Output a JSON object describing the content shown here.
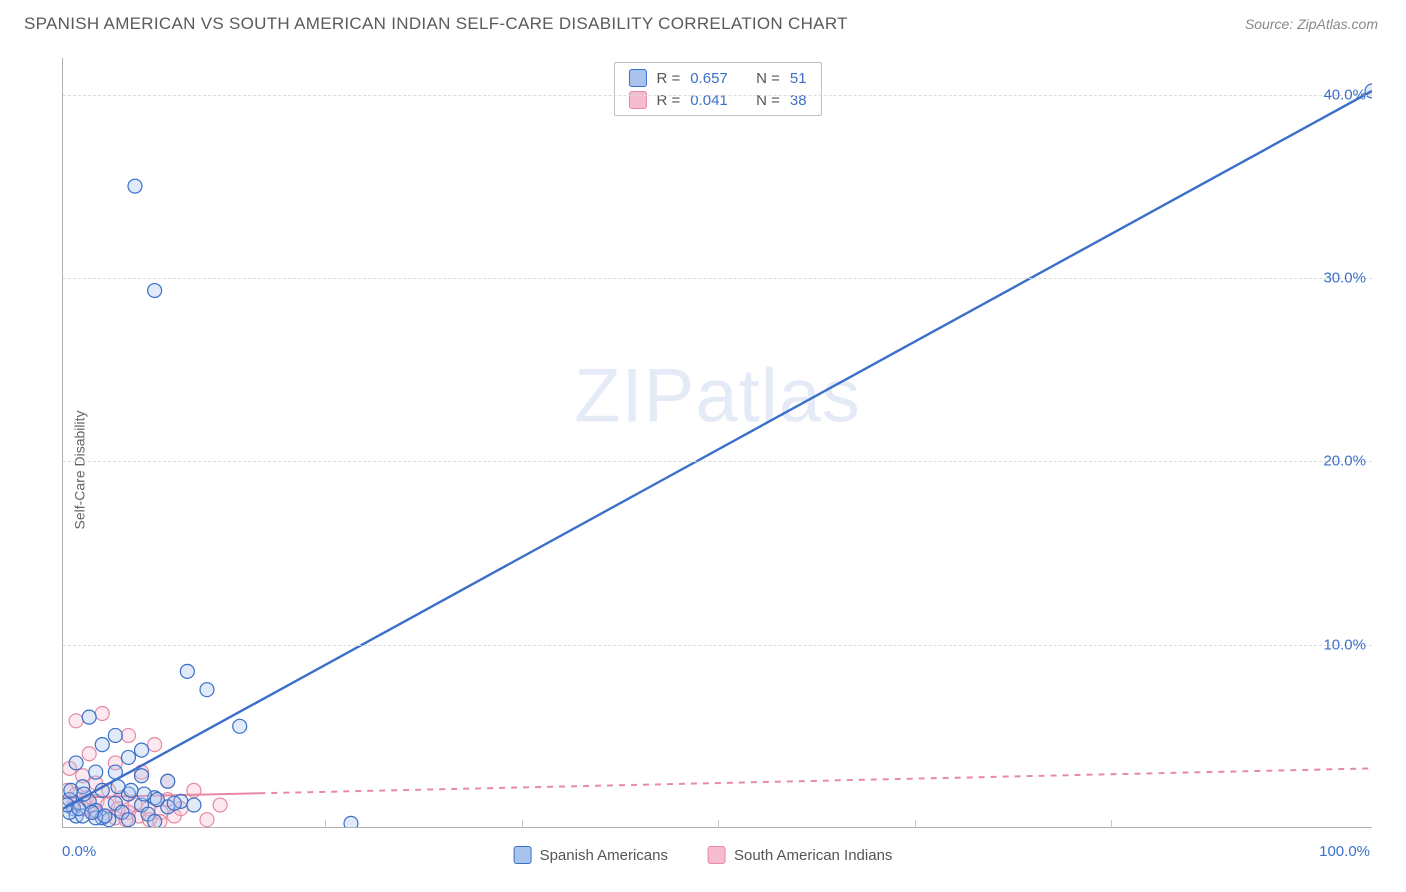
{
  "header": {
    "title": "SPANISH AMERICAN VS SOUTH AMERICAN INDIAN SELF-CARE DISABILITY CORRELATION CHART",
    "source_label": "Source:",
    "source_value": "ZipAtlas.com"
  },
  "chart": {
    "type": "scatter",
    "ylabel": "Self-Care Disability",
    "watermark": "ZIPatlas",
    "xlim": [
      0,
      100
    ],
    "ylim": [
      0,
      42
    ],
    "xtick_label_min": "0.0%",
    "xtick_label_max": "100.0%",
    "yticks": [
      {
        "v": 10,
        "label": "10.0%"
      },
      {
        "v": 20,
        "label": "20.0%"
      },
      {
        "v": 30,
        "label": "30.0%"
      },
      {
        "v": 40,
        "label": "40.0%"
      }
    ],
    "xtick_positions": [
      20,
      35,
      50,
      65,
      80
    ],
    "marker_radius": 7,
    "marker_stroke_width": 1.2,
    "marker_fill_opacity": 0.35,
    "grid_color": "#dcdcdc",
    "axis_font_color": "#3b6fc9",
    "axis_fontsize": 15,
    "background_color": "#ffffff",
    "series": {
      "a": {
        "label": "Spanish Americans",
        "color": "#3b6fc9",
        "fill": "#a9c4ec",
        "R": "0.657",
        "N": "51",
        "trend": {
          "x1": 0,
          "y1": 1.0,
          "x2": 100,
          "y2": 40.2,
          "width": 2.4,
          "dash": "none",
          "solid_until_x": 100
        },
        "points": [
          [
            100,
            40.2
          ],
          [
            5.5,
            35.0
          ],
          [
            7,
            29.3
          ],
          [
            9.5,
            8.5
          ],
          [
            11,
            7.5
          ],
          [
            13.5,
            5.5
          ],
          [
            22,
            0.2
          ],
          [
            2,
            6.0
          ],
          [
            4,
            5.0
          ],
          [
            6,
            4.2
          ],
          [
            3,
            4.5
          ],
          [
            5,
            3.8
          ],
          [
            1,
            3.5
          ],
          [
            2.5,
            3.0
          ],
          [
            4,
            3.0
          ],
          [
            6,
            2.8
          ],
          [
            8,
            2.5
          ],
          [
            1.5,
            2.2
          ],
          [
            3,
            2.0
          ],
          [
            5,
            1.8
          ],
          [
            7,
            1.6
          ],
          [
            9,
            1.4
          ],
          [
            10,
            1.2
          ],
          [
            0.5,
            1.5
          ],
          [
            2,
            1.4
          ],
          [
            4,
            1.3
          ],
          [
            6,
            1.2
          ],
          [
            8,
            1.1
          ],
          [
            0.8,
            1.0
          ],
          [
            2.5,
            0.9
          ],
          [
            4.5,
            0.8
          ],
          [
            6.5,
            0.7
          ],
          [
            1,
            0.6
          ],
          [
            3,
            0.5
          ],
          [
            5,
            0.4
          ],
          [
            7,
            0.3
          ],
          [
            0.5,
            0.8
          ],
          [
            1.5,
            0.6
          ],
          [
            2.5,
            0.5
          ],
          [
            3.5,
            0.4
          ],
          [
            0.3,
            1.2
          ],
          [
            1.2,
            1.0
          ],
          [
            2.2,
            0.8
          ],
          [
            3.2,
            0.6
          ],
          [
            0.6,
            2.0
          ],
          [
            1.6,
            1.8
          ],
          [
            4.2,
            2.2
          ],
          [
            5.2,
            2.0
          ],
          [
            6.2,
            1.8
          ],
          [
            7.2,
            1.5
          ],
          [
            8.5,
            1.3
          ]
        ]
      },
      "b": {
        "label": "South American Indians",
        "color": "#e68aa6",
        "fill": "#f5bccf",
        "R": "0.041",
        "N": "38",
        "trend": {
          "x1": 0,
          "y1": 1.6,
          "x2": 100,
          "y2": 3.2,
          "width": 2.0,
          "dash": "6,6",
          "solid_until_x": 15
        },
        "points": [
          [
            1,
            5.8
          ],
          [
            3,
            6.2
          ],
          [
            5,
            5.0
          ],
          [
            7,
            4.5
          ],
          [
            2,
            4.0
          ],
          [
            4,
            3.5
          ],
          [
            6,
            3.0
          ],
          [
            8,
            2.5
          ],
          [
            10,
            2.0
          ],
          [
            0.5,
            3.2
          ],
          [
            1.5,
            2.8
          ],
          [
            2.5,
            2.4
          ],
          [
            3.5,
            2.0
          ],
          [
            4.5,
            1.6
          ],
          [
            5.5,
            1.2
          ],
          [
            6.5,
            1.0
          ],
          [
            7.5,
            0.8
          ],
          [
            8.5,
            0.6
          ],
          [
            11,
            0.4
          ],
          [
            0.3,
            2.0
          ],
          [
            1.0,
            1.8
          ],
          [
            1.8,
            1.6
          ],
          [
            2.6,
            1.4
          ],
          [
            3.4,
            1.2
          ],
          [
            4.2,
            1.0
          ],
          [
            5.0,
            0.8
          ],
          [
            5.8,
            0.6
          ],
          [
            6.6,
            0.4
          ],
          [
            7.4,
            0.3
          ],
          [
            0.8,
            1.2
          ],
          [
            1.6,
            1.0
          ],
          [
            2.4,
            0.8
          ],
          [
            3.2,
            0.6
          ],
          [
            4.0,
            0.5
          ],
          [
            4.8,
            0.4
          ],
          [
            8.0,
            1.5
          ],
          [
            9.0,
            1.0
          ],
          [
            12,
            1.2
          ]
        ]
      }
    },
    "legend_box": {
      "R_label": "R =",
      "N_label": "N ="
    }
  }
}
